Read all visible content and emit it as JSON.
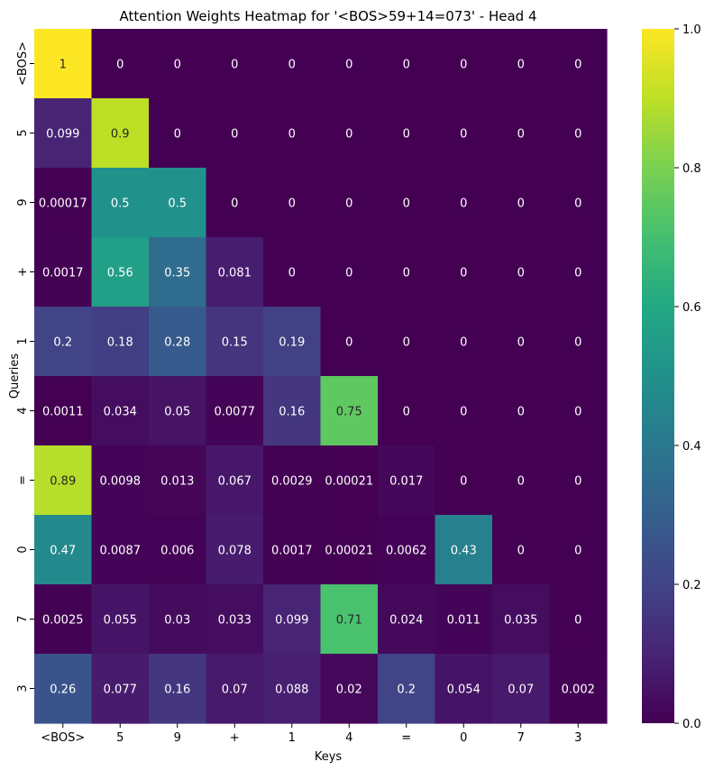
{
  "chart_data": {
    "type": "heatmap",
    "title": "Attention Weights Heatmap for '<BOS>59+14=073' - Head 4",
    "xlabel": "Keys",
    "ylabel": "Queries",
    "x_categories": [
      "<BOS>",
      "5",
      "9",
      "+",
      "1",
      "4",
      "=",
      "0",
      "7",
      "3"
    ],
    "y_categories": [
      "<BOS>",
      "5",
      "9",
      "+",
      "1",
      "4",
      "=",
      "0",
      "7",
      "3"
    ],
    "values": [
      [
        1,
        0,
        0,
        0,
        0,
        0,
        0,
        0,
        0,
        0
      ],
      [
        0.099,
        0.9,
        0,
        0,
        0,
        0,
        0,
        0,
        0,
        0
      ],
      [
        0.00017,
        0.5,
        0.5,
        0,
        0,
        0,
        0,
        0,
        0,
        0
      ],
      [
        0.0017,
        0.56,
        0.35,
        0.081,
        0,
        0,
        0,
        0,
        0,
        0
      ],
      [
        0.2,
        0.18,
        0.28,
        0.15,
        0.19,
        0,
        0,
        0,
        0,
        0
      ],
      [
        0.0011,
        0.034,
        0.05,
        0.0077,
        0.16,
        0.75,
        0,
        0,
        0,
        0
      ],
      [
        0.89,
        0.0098,
        0.013,
        0.067,
        0.0029,
        0.00021,
        0.017,
        0,
        0,
        0
      ],
      [
        0.47,
        0.0087,
        0.006,
        0.078,
        0.0017,
        0.00021,
        0.0062,
        0.43,
        0,
        0
      ],
      [
        0.0025,
        0.055,
        0.03,
        0.033,
        0.099,
        0.71,
        0.024,
        0.011,
        0.035,
        0
      ],
      [
        0.26,
        0.077,
        0.16,
        0.07,
        0.088,
        0.02,
        0.2,
        0.054,
        0.07,
        0.002
      ]
    ],
    "colorbar": {
      "ticks": [
        "0.0",
        "0.2",
        "0.4",
        "0.6",
        "0.8",
        "1.0"
      ],
      "range": [
        0,
        1
      ]
    },
    "colormap": "viridis",
    "grid": false
  }
}
